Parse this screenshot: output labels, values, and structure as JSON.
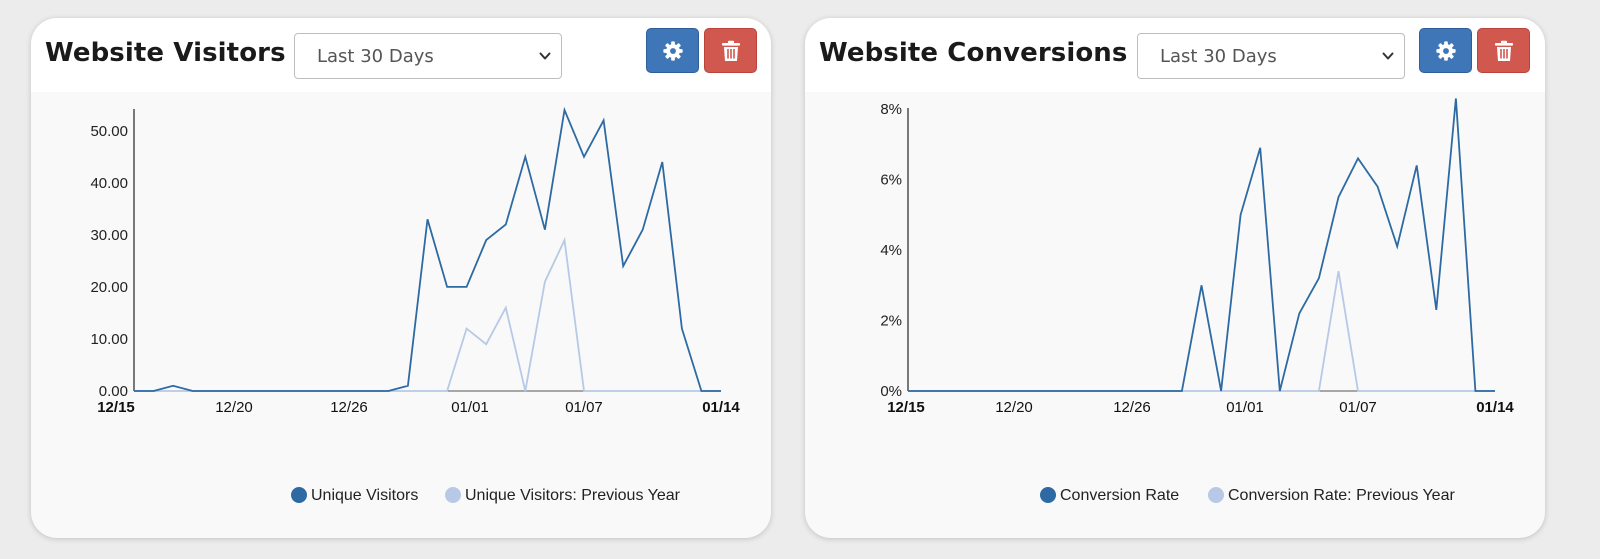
{
  "colors": {
    "series_primary": "#2d6aa3",
    "series_previous": "#b7c9e6",
    "settings_button": "#3f76b8",
    "delete_button": "#d0584f",
    "card_background": "#f9f9f9",
    "header_background": "#ffffff"
  },
  "icons": {
    "settings": "gear-icon",
    "delete": "trash-icon",
    "dropdown": "chevron-down-icon"
  },
  "widgets": {
    "visitors": {
      "title": "Website Visitors",
      "range_selected": "Last 30 Days",
      "legend": [
        "Unique Visitors",
        "Unique Visitors: Previous Year"
      ]
    },
    "conversions": {
      "title": "Website Conversions",
      "range_selected": "Last 30 Days",
      "legend": [
        "Conversion Rate",
        "Conversion Rate: Previous Year"
      ]
    }
  },
  "chart_data": [
    {
      "id": "visitors",
      "type": "line",
      "title": "",
      "xlabel": "",
      "ylabel": "",
      "x_range": [
        "12/15",
        "01/14"
      ],
      "x_ticks": [
        {
          "label": "12/15",
          "bold": true
        },
        {
          "label": "12/20",
          "bold": false
        },
        {
          "label": "12/26",
          "bold": false
        },
        {
          "label": "01/01",
          "bold": false
        },
        {
          "label": "01/07",
          "bold": false
        },
        {
          "label": "01/14",
          "bold": true
        }
      ],
      "y_ticks": [
        "0.00",
        "10.00",
        "20.00",
        "30.00",
        "40.00",
        "50.00"
      ],
      "ylim": [
        0,
        54
      ],
      "grid": false,
      "legend_position": "bottom",
      "series": [
        {
          "name": "Unique Visitors",
          "values": [
            0,
            0,
            1,
            0,
            0,
            0,
            0,
            0,
            0,
            0,
            0,
            0,
            0,
            0,
            1,
            33,
            20,
            20,
            29,
            32,
            45,
            31,
            54,
            45,
            52,
            24,
            31,
            44,
            12,
            0,
            0
          ]
        },
        {
          "name": "Unique Visitors: Previous Year",
          "values": [
            0,
            0,
            0,
            0,
            0,
            0,
            0,
            0,
            0,
            0,
            0,
            0,
            0,
            0,
            0,
            0,
            0,
            12,
            9,
            16,
            0,
            21,
            29,
            0,
            0,
            0,
            0,
            0,
            0,
            0,
            0
          ]
        }
      ]
    },
    {
      "id": "conversions",
      "type": "line",
      "title": "",
      "xlabel": "",
      "ylabel": "",
      "x_range": [
        "12/15",
        "01/14"
      ],
      "x_ticks": [
        {
          "label": "12/15",
          "bold": true
        },
        {
          "label": "12/20",
          "bold": false
        },
        {
          "label": "12/26",
          "bold": false
        },
        {
          "label": "01/01",
          "bold": false
        },
        {
          "label": "01/07",
          "bold": false
        },
        {
          "label": "01/14",
          "bold": true
        }
      ],
      "y_ticks": [
        "0%",
        "2%",
        "4%",
        "6%",
        "8%"
      ],
      "ylim": [
        0,
        8
      ],
      "grid": false,
      "legend_position": "bottom",
      "series": [
        {
          "name": "Conversion Rate",
          "values": [
            0,
            0,
            0,
            0,
            0,
            0,
            0,
            0,
            0,
            0,
            0,
            0,
            0,
            0,
            0,
            3.0,
            0,
            5.0,
            6.9,
            0,
            2.2,
            3.2,
            5.5,
            6.6,
            5.8,
            4.1,
            6.4,
            2.3,
            8.3,
            0,
            0
          ]
        },
        {
          "name": "Conversion Rate: Previous Year",
          "values": [
            0,
            0,
            0,
            0,
            0,
            0,
            0,
            0,
            0,
            0,
            0,
            0,
            0,
            0,
            0,
            0,
            0,
            0,
            0,
            0,
            0,
            0,
            3.4,
            0,
            0,
            0,
            0,
            0,
            0,
            0,
            0
          ]
        }
      ]
    }
  ]
}
